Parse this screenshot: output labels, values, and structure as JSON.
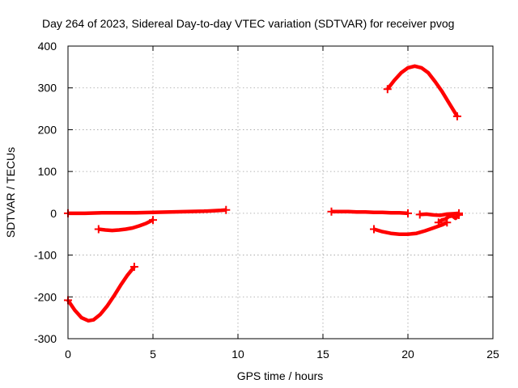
{
  "chart_data": {
    "type": "scatter",
    "title": "Day 264 of 2023, Sidereal Day-to-day VTEC variation (SDTVAR) for receiver pvog",
    "xlabel": "GPS time / hours",
    "ylabel": "SDTVAR / TECUs",
    "xlim": [
      0,
      25
    ],
    "ylim": [
      -300,
      400
    ],
    "xticks": [
      0,
      5,
      10,
      15,
      20,
      25
    ],
    "yticks": [
      -300,
      -200,
      -100,
      0,
      100,
      200,
      300,
      400
    ],
    "grid": true,
    "marker": "plus",
    "color": "#ff0000",
    "series": [
      {
        "x": [
          0.0,
          0.4,
          0.8,
          1.2,
          1.5,
          1.9,
          2.3,
          2.7,
          3.1,
          3.5,
          3.9
        ],
        "y": [
          -208,
          -232,
          -250,
          -257,
          -255,
          -242,
          -222,
          -198,
          -172,
          -148,
          -128
        ]
      },
      {
        "x": [
          0.0,
          1.0,
          2.0,
          3.0,
          4.0,
          5.0,
          6.0,
          7.0,
          8.0,
          9.0,
          9.3
        ],
        "y": [
          0,
          0,
          1,
          1,
          1,
          2,
          3,
          4,
          5,
          7,
          8
        ]
      },
      {
        "x": [
          1.8,
          2.2,
          2.6,
          3.0,
          3.4,
          3.8,
          4.2,
          4.6,
          5.0
        ],
        "y": [
          -38,
          -40,
          -41,
          -40,
          -38,
          -35,
          -30,
          -24,
          -16
        ]
      },
      {
        "x": [
          15.5,
          16.0,
          16.5,
          17.0,
          17.5,
          18.0,
          18.5,
          19.0,
          19.5,
          20.0
        ],
        "y": [
          4,
          4,
          4,
          3,
          3,
          2,
          2,
          1,
          1,
          0
        ]
      },
      {
        "x": [
          18.0,
          18.5,
          19.0,
          19.5,
          20.0,
          20.5,
          21.0,
          21.5,
          22.0,
          22.3
        ],
        "y": [
          -38,
          -44,
          -48,
          -50,
          -50,
          -48,
          -42,
          -35,
          -28,
          -22
        ]
      },
      {
        "x": [
          20.7,
          21.1,
          21.5,
          21.9,
          22.3,
          22.7,
          23.0
        ],
        "y": [
          -3,
          -2,
          -4,
          -5,
          -2,
          -1,
          0
        ]
      },
      {
        "x": [
          21.8,
          22.0,
          22.2,
          22.4,
          22.6,
          22.8,
          23.0
        ],
        "y": [
          -22,
          -16,
          -14,
          -8,
          -6,
          -12,
          -4
        ]
      },
      {
        "x": [
          18.8,
          19.2,
          19.6,
          20.0,
          20.4,
          20.8,
          21.2,
          21.6,
          22.0,
          22.4,
          22.9
        ],
        "y": [
          297,
          318,
          336,
          348,
          352,
          348,
          336,
          315,
          292,
          265,
          232
        ]
      }
    ]
  }
}
